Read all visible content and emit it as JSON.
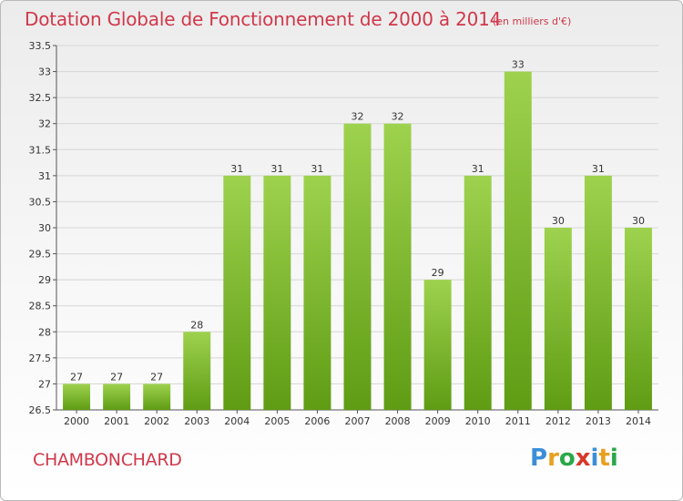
{
  "title": "Dotation Globale de Fonctionnement de 2000 à 2014",
  "subtitle": "(en milliers d'€)",
  "place": "CHAMBONCHARD",
  "logo": {
    "text": "Proxiti",
    "letter_colors": [
      "#3a8fd8",
      "#e8a020",
      "#2aa84a",
      "#d8382a",
      "#3a8fd8",
      "#e8a020",
      "#2aa84a"
    ]
  },
  "colors": {
    "bar_top": "#9ed24e",
    "bar_bottom": "#5f9c14",
    "title": "#d0384a",
    "grid": "#d6d6d6"
  },
  "chart_data": {
    "type": "bar",
    "categories": [
      "2000",
      "2001",
      "2002",
      "2003",
      "2004",
      "2005",
      "2006",
      "2007",
      "2008",
      "2009",
      "2010",
      "2011",
      "2012",
      "2013",
      "2014"
    ],
    "values": [
      27,
      27,
      27,
      28,
      31,
      31,
      31,
      32,
      32,
      29,
      31,
      33,
      30,
      31,
      30
    ],
    "data_labels": [
      "27",
      "27",
      "27",
      "28",
      "31",
      "31",
      "31",
      "32",
      "32",
      "29",
      "31",
      "33",
      "30",
      "31",
      "30"
    ],
    "ylim": [
      26.5,
      33.5
    ],
    "yticks": [
      26.5,
      27,
      27.5,
      28,
      28.5,
      29,
      29.5,
      30,
      30.5,
      31,
      31.5,
      32,
      32.5,
      33,
      33.5
    ],
    "ytick_labels": [
      "26.5",
      "27",
      "27.5",
      "28",
      "28.5",
      "29",
      "29.5",
      "30",
      "30.5",
      "31",
      "31.5",
      "32",
      "32.5",
      "33",
      "33.5"
    ],
    "grid": true
  }
}
